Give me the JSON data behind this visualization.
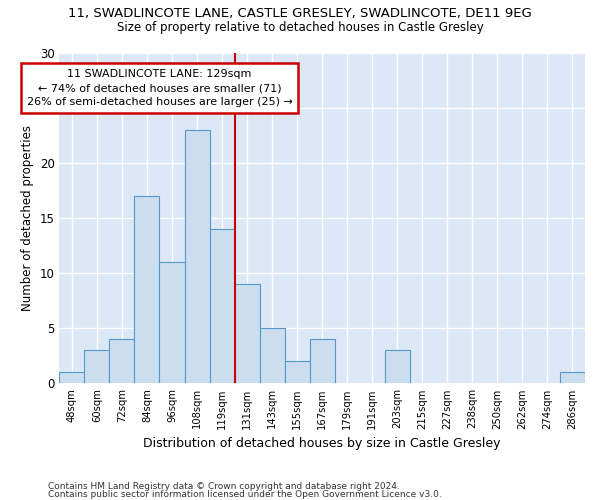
{
  "title": "11, SWADLINCOTE LANE, CASTLE GRESLEY, SWADLINCOTE, DE11 9EG",
  "subtitle": "Size of property relative to detached houses in Castle Gresley",
  "xlabel": "Distribution of detached houses by size in Castle Gresley",
  "ylabel": "Number of detached properties",
  "categories": [
    "48sqm",
    "60sqm",
    "72sqm",
    "84sqm",
    "96sqm",
    "108sqm",
    "119sqm",
    "131sqm",
    "143sqm",
    "155sqm",
    "167sqm",
    "179sqm",
    "191sqm",
    "203sqm",
    "215sqm",
    "227sqm",
    "238sqm",
    "250sqm",
    "262sqm",
    "274sqm",
    "286sqm"
  ],
  "values": [
    1,
    3,
    4,
    17,
    11,
    23,
    14,
    9,
    5,
    2,
    4,
    0,
    0,
    3,
    0,
    0,
    0,
    0,
    0,
    0,
    1
  ],
  "bar_color": "#ccddef",
  "bar_edgecolor": "#5599cc",
  "vline_x": 7,
  "vline_color": "#cc0000",
  "annotation_text": "11 SWADLINCOTE LANE: 129sqm\n← 74% of detached houses are smaller (71)\n26% of semi-detached houses are larger (25) →",
  "annotation_box_edgecolor": "#cc0000",
  "ylim": [
    0,
    30
  ],
  "yticks": [
    0,
    5,
    10,
    15,
    20,
    25,
    30
  ],
  "footer1": "Contains HM Land Registry data © Crown copyright and database right 2024.",
  "footer2": "Contains public sector information licensed under the Open Government Licence v3.0.",
  "bg_color": "#ffffff",
  "plot_bg_color": "#dce8f5"
}
